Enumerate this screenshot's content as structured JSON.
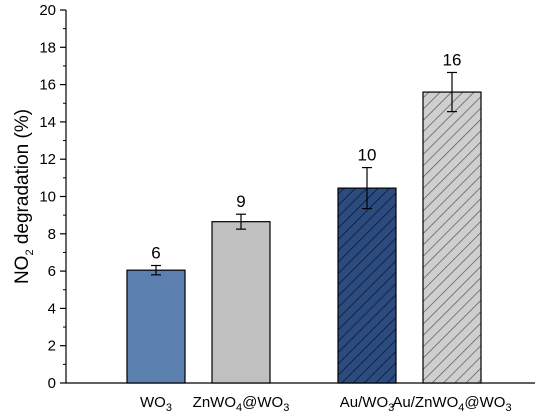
{
  "chart_data": {
    "type": "bar",
    "ylabel": {
      "pre": "NO",
      "sub": "2",
      "post": " degradation (%)"
    },
    "ylim": [
      0,
      20
    ],
    "yticks": [
      0,
      2,
      4,
      6,
      8,
      10,
      12,
      14,
      16,
      18,
      20
    ],
    "categories": [
      {
        "parts": [
          {
            "t": "WO"
          },
          {
            "t": "3",
            "sub": true
          }
        ]
      },
      {
        "parts": [
          {
            "t": "ZnWO"
          },
          {
            "t": "4",
            "sub": true
          },
          {
            "t": "@WO"
          },
          {
            "t": "3",
            "sub": true
          }
        ]
      },
      {
        "parts": [
          {
            "t": "Au/WO"
          },
          {
            "t": "3",
            "sub": true
          }
        ]
      },
      {
        "parts": [
          {
            "t": "Au/ZnWO"
          },
          {
            "t": "4",
            "sub": true
          },
          {
            "t": "@WO"
          },
          {
            "t": "3",
            "sub": true
          }
        ]
      }
    ],
    "values": [
      6.05,
      8.65,
      10.45,
      15.6
    ],
    "errors": [
      0.25,
      0.4,
      1.1,
      1.05
    ],
    "data_labels": [
      "6",
      "9",
      "10",
      "16"
    ],
    "bars": [
      {
        "fill": "#5b7fae",
        "pattern": "none"
      },
      {
        "fill": "#c0c0c0",
        "pattern": "none"
      },
      {
        "fill": "#2c4b7e",
        "pattern": "hatch",
        "hatch_color": "#0c1a33"
      },
      {
        "fill": "#cfcfcf",
        "pattern": "hatch",
        "hatch_color": "#555555"
      }
    ]
  }
}
